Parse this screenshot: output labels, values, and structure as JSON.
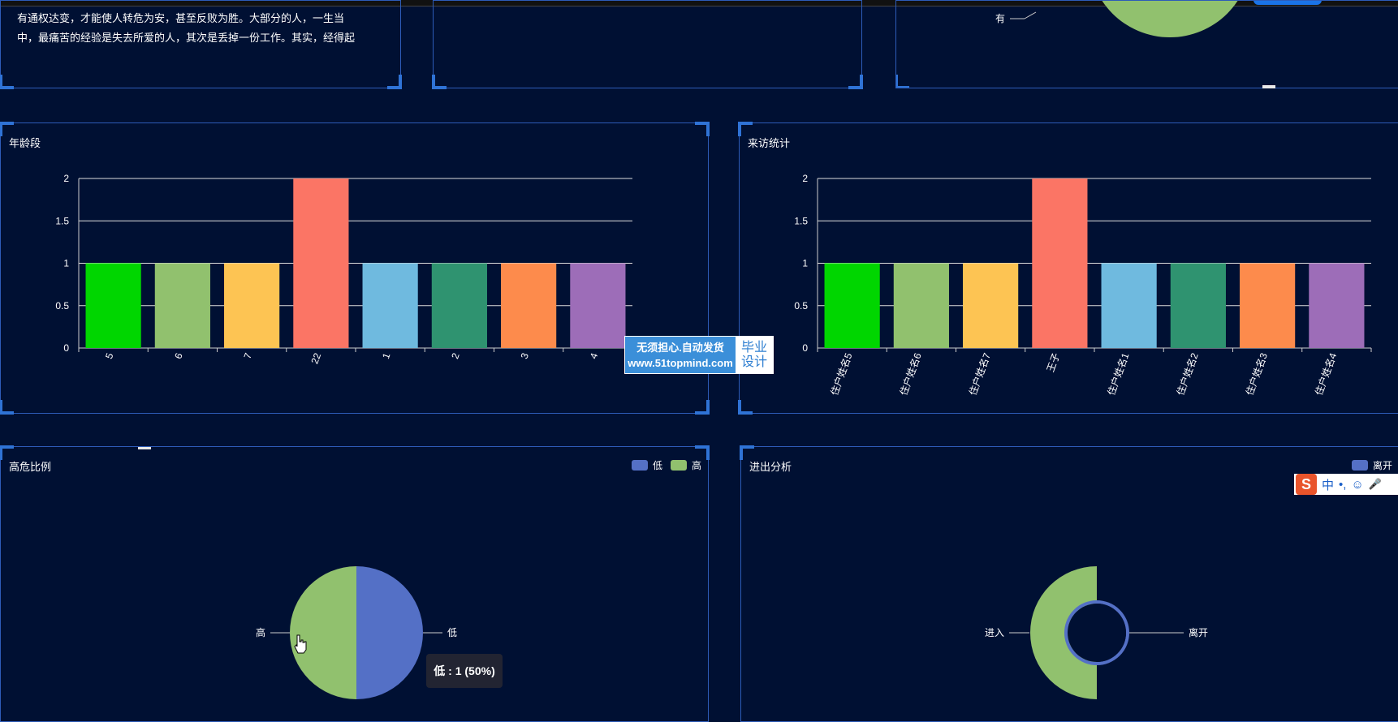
{
  "quote_panel": {
    "lines": [
      "有通权达变，才能使人转危为安，甚至反败为胜。大部分的人，一生当",
      "中，最痛苦的经验是失去所爱的人，其次是丢掉一份工作。其实，经得起"
    ]
  },
  "top_pie": {
    "label": "有",
    "color": "#91c16e"
  },
  "age_chart": {
    "title": "年龄段",
    "chart_data": {
      "type": "bar",
      "categories": [
        "5",
        "6",
        "7",
        "22",
        "1",
        "2",
        "3",
        "4"
      ],
      "values": [
        1,
        1,
        1,
        2,
        1,
        1,
        1,
        1
      ],
      "colors": [
        "#00d600",
        "#91c16e",
        "#fdc453",
        "#fb7565",
        "#6fbadf",
        "#2f9370",
        "#fd8b4c",
        "#9d6db8"
      ],
      "yticks": [
        "0",
        "0.5",
        "1",
        "1.5",
        "2"
      ],
      "ylim": [
        0,
        2
      ]
    }
  },
  "visit_chart": {
    "title": "来访统计",
    "chart_data": {
      "type": "bar",
      "categories": [
        "住户姓名5",
        "住户姓名6",
        "住户姓名7",
        "王子",
        "住户姓名1",
        "住户姓名2",
        "住户姓名3",
        "住户姓名4"
      ],
      "values": [
        1,
        1,
        1,
        2,
        1,
        1,
        1,
        1
      ],
      "colors": [
        "#00d600",
        "#91c16e",
        "#fdc453",
        "#fb7565",
        "#6fbadf",
        "#2f9370",
        "#fd8b4c",
        "#9d6db8"
      ],
      "yticks": [
        "0",
        "0.5",
        "1",
        "1.5",
        "2"
      ],
      "ylim": [
        0,
        2
      ]
    }
  },
  "risk_chart": {
    "title": "高危比例",
    "legend": [
      {
        "label": "低",
        "color": "#5470c6"
      },
      {
        "label": "高",
        "color": "#91c16e"
      }
    ],
    "chart_data": {
      "type": "pie",
      "slices": [
        {
          "label": "低",
          "value": 1,
          "color": "#5470c6"
        },
        {
          "label": "高",
          "value": 1,
          "color": "#91c16e"
        }
      ]
    },
    "tooltip": "低 : 1 (50%)"
  },
  "inout_chart": {
    "title": "进出分析",
    "legend": [
      {
        "label": "离开",
        "color": "#5470c6"
      }
    ],
    "label_left": "进入",
    "label_right": "离开",
    "inner_ring_color": "#5470c6",
    "outer_half_color": "#91c16e"
  },
  "watermark": {
    "left_line1": "无须担心.自动发货",
    "left_line2": "www.51topmind.com",
    "right_line1": "毕业",
    "right_line2": "设计"
  },
  "ime_bar": {
    "logo": "S",
    "lang": "中",
    "punct": "•,",
    "emoji": "☺",
    "mic": "🎤"
  }
}
